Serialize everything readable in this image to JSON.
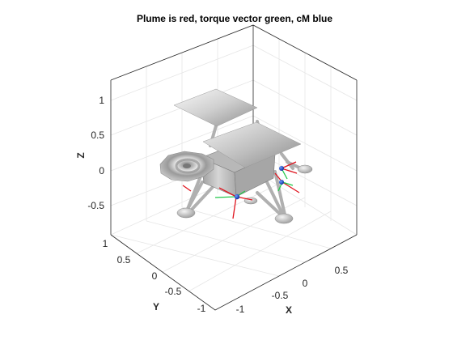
{
  "figure": {
    "title": "Plume is red, torque vector green, cM blue"
  },
  "axes": {
    "z_label": "Z",
    "x_label": "X",
    "y_label": "Y",
    "z_ticks": [
      "1",
      "0.5",
      "0",
      "-0.5"
    ],
    "x_ticks": [
      "-1",
      "-0.5",
      "0",
      "0.5"
    ],
    "y_ticks": [
      "1",
      "0.5",
      "0",
      "-0.5",
      "-1"
    ]
  },
  "colors": {
    "plume": "#e0141e",
    "torque": "#22c84a",
    "cm": "#1040d8",
    "box": "#262626",
    "grid": "#e6e6e6",
    "body": "#c8c8c8"
  }
}
